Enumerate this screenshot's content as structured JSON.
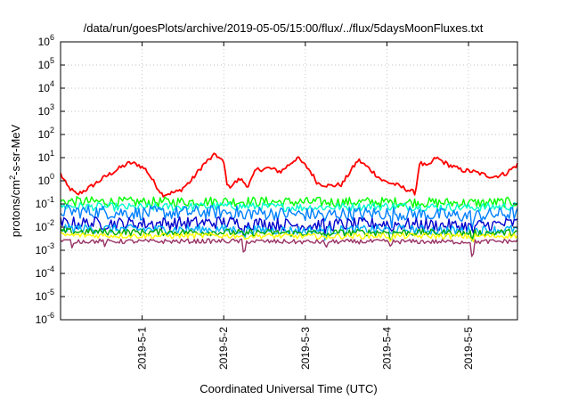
{
  "chart_data": {
    "type": "line",
    "title": "/data/run/goesPlots/archive/2019-05-05/15:00/flux/../flux/5daysMoonFluxes.txt",
    "xlabel": "Coordinated Universal Time (UTC)",
    "ylabel_base": "protons/cm",
    "ylabel_sup": "2",
    "ylabel_rest": "-s-sr-MeV",
    "yscale": "log",
    "ylim_exp": [
      -6,
      6
    ],
    "y_ticks": [
      {
        "base": "10",
        "exp": "6",
        "e": 6
      },
      {
        "base": "10",
        "exp": "5",
        "e": 5
      },
      {
        "base": "10",
        "exp": "4",
        "e": 4
      },
      {
        "base": "10",
        "exp": "3",
        "e": 3
      },
      {
        "base": "10",
        "exp": "2",
        "e": 2
      },
      {
        "base": "10",
        "exp": "1",
        "e": 1
      },
      {
        "base": "10",
        "exp": "0",
        "e": 0
      },
      {
        "base": "10",
        "exp": "-1",
        "e": -1
      },
      {
        "base": "10",
        "exp": "-2",
        "e": -2
      },
      {
        "base": "10",
        "exp": "-3",
        "e": -3
      },
      {
        "base": "10",
        "exp": "-4",
        "e": -4
      },
      {
        "base": "10",
        "exp": "-5",
        "e": -5
      },
      {
        "base": "10",
        "exp": "-6",
        "e": -6
      }
    ],
    "xlim_days": [
      0,
      5.6
    ],
    "x_ticks": [
      {
        "label": "2019-5-1",
        "day": 1
      },
      {
        "label": "2019-5-2",
        "day": 2
      },
      {
        "label": "2019-5-3",
        "day": 3
      },
      {
        "label": "2019-5-4",
        "day": 4
      },
      {
        "label": "2019-5-5",
        "day": 5
      }
    ],
    "grid": true,
    "series": [
      {
        "color": "#ff0000",
        "keypoints": [
          [
            0,
            2.0
          ],
          [
            0.08,
            0.6
          ],
          [
            0.2,
            0.25
          ],
          [
            0.35,
            0.5
          ],
          [
            0.55,
            1.5
          ],
          [
            0.75,
            4.0
          ],
          [
            0.85,
            6.0
          ],
          [
            0.95,
            5.0
          ],
          [
            1.05,
            3.0
          ],
          [
            1.15,
            0.8
          ],
          [
            1.25,
            0.25
          ],
          [
            1.45,
            0.35
          ],
          [
            1.6,
            1.0
          ],
          [
            1.75,
            5.0
          ],
          [
            1.9,
            14.0
          ],
          [
            2.0,
            6.0
          ],
          [
            2.05,
            0.5
          ],
          [
            2.2,
            1.2
          ],
          [
            2.3,
            0.6
          ],
          [
            2.4,
            3.0
          ],
          [
            2.55,
            3.5
          ],
          [
            2.7,
            2.5
          ],
          [
            2.9,
            10.0
          ],
          [
            3.05,
            3.0
          ],
          [
            3.15,
            0.8
          ],
          [
            3.3,
            0.6
          ],
          [
            3.45,
            0.7
          ],
          [
            3.55,
            2.5
          ],
          [
            3.65,
            8.0
          ],
          [
            3.8,
            3.0
          ],
          [
            3.95,
            1.0
          ],
          [
            4.1,
            0.7
          ],
          [
            4.3,
            0.35
          ],
          [
            4.35,
            0.3
          ],
          [
            4.4,
            6.0
          ],
          [
            4.5,
            4.0
          ],
          [
            4.6,
            10.0
          ],
          [
            4.75,
            5.0
          ],
          [
            4.9,
            3.0
          ],
          [
            5.05,
            2.5
          ],
          [
            5.2,
            1.8
          ],
          [
            5.3,
            1.5
          ],
          [
            5.45,
            2.0
          ],
          [
            5.6,
            5.0
          ]
        ],
        "amp": 0.1,
        "dips": []
      },
      {
        "color": "#00ff00",
        "keypoints": [
          [
            0,
            0.13
          ],
          [
            1.0,
            0.12
          ],
          [
            2.0,
            0.13
          ],
          [
            3.0,
            0.12
          ],
          [
            4.0,
            0.12
          ],
          [
            5.0,
            0.11
          ],
          [
            5.6,
            0.12
          ]
        ],
        "amp": 0.22,
        "dips": []
      },
      {
        "color": "#00ffcc",
        "keypoints": [
          [
            0,
            0.08
          ],
          [
            1.0,
            0.07
          ],
          [
            2.0,
            0.08
          ],
          [
            3.0,
            0.07
          ],
          [
            4.0,
            0.08
          ],
          [
            5.0,
            0.07
          ],
          [
            5.6,
            0.08
          ]
        ],
        "amp": 0.18,
        "dips": []
      },
      {
        "color": "#0080ff",
        "keypoints": [
          [
            0,
            0.05
          ],
          [
            1.0,
            0.04
          ],
          [
            2.0,
            0.045
          ],
          [
            3.0,
            0.035
          ],
          [
            4.0,
            0.04
          ],
          [
            5.0,
            0.03
          ],
          [
            5.6,
            0.04
          ]
        ],
        "amp": 0.3,
        "dips": [
          [
            2.25,
            0.3
          ],
          [
            3.25,
            0.35
          ],
          [
            4.05,
            0.3
          ],
          [
            5.05,
            0.3
          ]
        ]
      },
      {
        "color": "#0000cc",
        "keypoints": [
          [
            0,
            0.015
          ],
          [
            1.0,
            0.014
          ],
          [
            2.0,
            0.016
          ],
          [
            3.0,
            0.012
          ],
          [
            4.0,
            0.014
          ],
          [
            5.0,
            0.011
          ],
          [
            5.6,
            0.015
          ]
        ],
        "amp": 0.28,
        "dips": [
          [
            2.25,
            0.4
          ],
          [
            3.25,
            0.4
          ],
          [
            4.05,
            0.4
          ],
          [
            5.05,
            0.4
          ]
        ]
      },
      {
        "color": "#00b0ff",
        "keypoints": [
          [
            0,
            0.009
          ],
          [
            1.0,
            0.008
          ],
          [
            2.0,
            0.008
          ],
          [
            3.0,
            0.007
          ],
          [
            4.0,
            0.008
          ],
          [
            5.0,
            0.007
          ],
          [
            5.6,
            0.008
          ]
        ],
        "amp": 0.2,
        "dips": [
          [
            2.25,
            0.45
          ],
          [
            3.25,
            0.45
          ],
          [
            4.05,
            0.45
          ],
          [
            5.05,
            0.45
          ]
        ]
      },
      {
        "color": "#00aa00",
        "keypoints": [
          [
            0,
            0.0065
          ],
          [
            1.0,
            0.006
          ],
          [
            2.0,
            0.006
          ],
          [
            3.0,
            0.0055
          ],
          [
            4.0,
            0.006
          ],
          [
            5.0,
            0.0055
          ],
          [
            5.6,
            0.006
          ]
        ],
        "amp": 0.15,
        "dips": [
          [
            2.25,
            0.5
          ],
          [
            3.25,
            0.5
          ],
          [
            4.05,
            0.5
          ],
          [
            5.05,
            0.5
          ]
        ]
      },
      {
        "color": "#ffff00",
        "keypoints": [
          [
            0,
            0.0045
          ],
          [
            1.0,
            0.0042
          ],
          [
            2.0,
            0.0043
          ],
          [
            3.0,
            0.004
          ],
          [
            4.0,
            0.0042
          ],
          [
            5.0,
            0.004
          ],
          [
            5.6,
            0.0043
          ]
        ],
        "amp": 0.12,
        "dips": [
          [
            2.25,
            0.6
          ],
          [
            3.25,
            0.6
          ],
          [
            4.05,
            0.6
          ],
          [
            5.05,
            0.6
          ]
        ]
      },
      {
        "color": "#993366",
        "keypoints": [
          [
            0,
            0.0025
          ],
          [
            1.0,
            0.0024
          ],
          [
            2.0,
            0.0025
          ],
          [
            3.0,
            0.0023
          ],
          [
            4.0,
            0.0024
          ],
          [
            5.0,
            0.0023
          ],
          [
            5.6,
            0.0025
          ]
        ],
        "amp": 0.1,
        "dips": [
          [
            0.15,
            0.5
          ],
          [
            0.55,
            0.6
          ],
          [
            2.25,
            0.2
          ],
          [
            3.25,
            0.5
          ],
          [
            4.05,
            0.5
          ],
          [
            5.05,
            0.15
          ]
        ]
      }
    ]
  }
}
